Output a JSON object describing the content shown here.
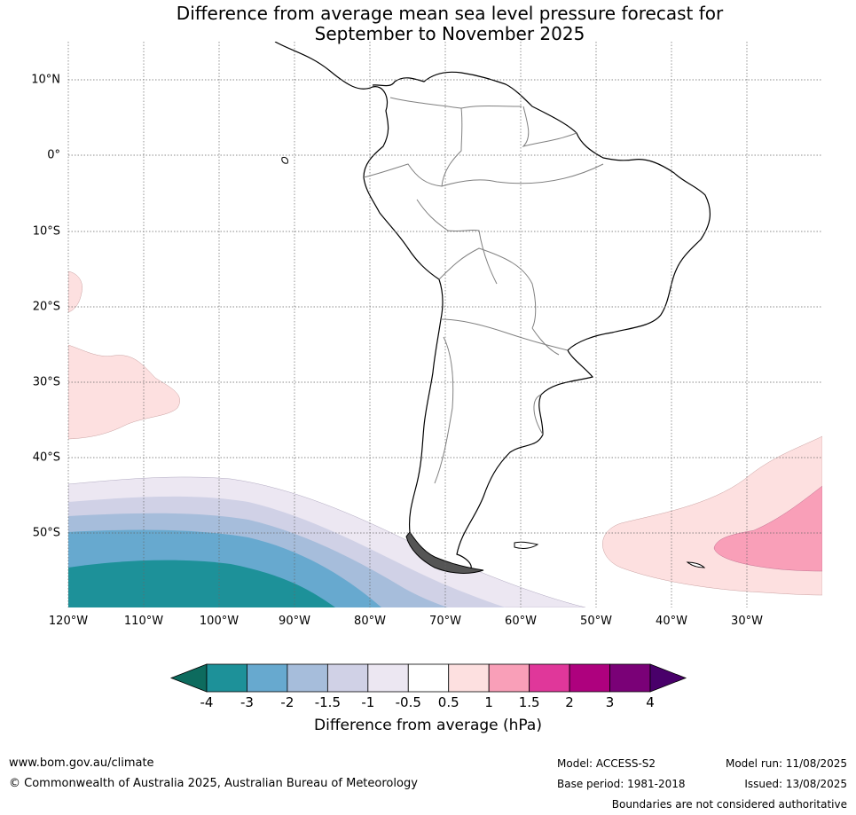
{
  "title": {
    "line1": "Difference from average mean sea level pressure forecast for",
    "line2": "September to November 2025"
  },
  "map": {
    "lat_labels": [
      "10°N",
      "0°",
      "10°S",
      "20°S",
      "30°S",
      "40°S",
      "50°S"
    ],
    "lon_labels": [
      "120°W",
      "110°W",
      "100°W",
      "90°W",
      "80°W",
      "70°W",
      "60°W",
      "50°W",
      "40°W",
      "30°W"
    ],
    "gridlines": true,
    "region": "South America",
    "overlay_regions": [
      {
        "name": "weak positive anomaly west of Chile",
        "range": "0.5 to 1"
      },
      {
        "name": "negative anomaly southeast Pacific",
        "range": "-4 to -0.5"
      },
      {
        "name": "positive anomaly southwest Atlantic",
        "range": "0.5 to 1.5"
      }
    ]
  },
  "colorbar": {
    "ticks": [
      "-4",
      "-3",
      "-2",
      "-1.5",
      "-1",
      "-0.5",
      "0.5",
      "1",
      "1.5",
      "2",
      "3",
      "4"
    ],
    "colors": [
      "#1d9199",
      "#67a9cf",
      "#a6bddb",
      "#d0d1e6",
      "#ece7f2",
      "#ffffff",
      "#fde0e0",
      "#f99fb8",
      "#e0379a",
      "#ae017e",
      "#7a0177"
    ],
    "under_color": "#0d6b5e",
    "over_color": "#49006a",
    "label": "Difference from average (hPa)"
  },
  "footer": {
    "website": "www.bom.gov.au/climate",
    "copyright": "© Commonwealth of Australia 2025, Australian Bureau of Meteorology",
    "model": "Model: ACCESS-S2",
    "base_period": "Base period: 1981-2018",
    "model_run": "Model run: 11/08/2025",
    "issued": "Issued: 13/08/2025",
    "disclaimer": "Boundaries are not considered authoritative"
  }
}
